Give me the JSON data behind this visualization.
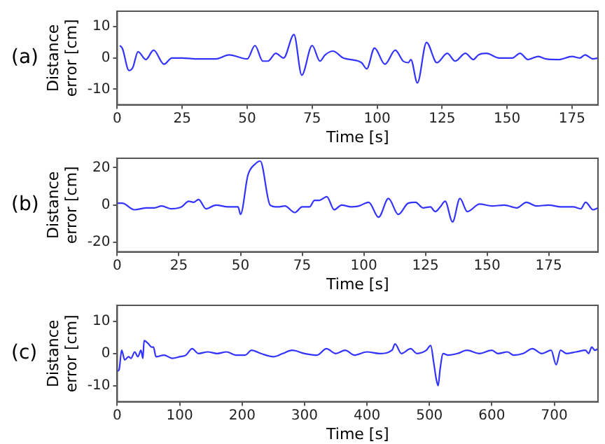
{
  "chart_data": [
    {
      "type": "line",
      "annotations": [
        "(a)"
      ],
      "xlabel": "Time [s]",
      "ylabel": "Distance error [cm]",
      "xlim": [
        0,
        185
      ],
      "xticks": [
        0,
        25,
        50,
        75,
        100,
        125,
        150,
        175
      ],
      "ylim": [
        -15,
        15
      ],
      "yticks": [
        -10,
        0,
        10
      ],
      "grid": false,
      "legend": false,
      "marker": "none",
      "series": [
        {
          "color": "#3333ff",
          "x": [
            1,
            2,
            4.5,
            6,
            8,
            11,
            14,
            18,
            21,
            25,
            30,
            35,
            38,
            43,
            50,
            53,
            56,
            58,
            61,
            64,
            68,
            71,
            75,
            78,
            80,
            83,
            87,
            94,
            96,
            99,
            103,
            107,
            110,
            112,
            113,
            115.5,
            119,
            123,
            127,
            130,
            134,
            137,
            139,
            142,
            147,
            152,
            155,
            158,
            162,
            165,
            170,
            175,
            178,
            180,
            183,
            185
          ],
          "values": [
            4,
            3,
            -4,
            -3,
            2,
            -0.5,
            2.5,
            -2,
            0,
            0,
            -0.3,
            -0.3,
            -0.3,
            1,
            -0.3,
            4,
            -1,
            -1,
            1.5,
            0,
            7.5,
            -5.5,
            4,
            -1,
            1,
            2.2,
            0,
            -1.5,
            -3.5,
            3.2,
            -2,
            2.5,
            -1,
            -1.5,
            -0.5,
            -8,
            5,
            -1.5,
            1.5,
            -1,
            1.5,
            -0.5,
            1,
            1.5,
            0,
            0,
            1.5,
            -0.5,
            0.5,
            -0.3,
            -0.5,
            0.5,
            0,
            1,
            -0.3,
            0
          ]
        }
      ]
    },
    {
      "type": "line",
      "annotations": [
        "(b)"
      ],
      "xlabel": "Time [s]",
      "ylabel": "Distance error [cm]",
      "xlim": [
        0,
        195
      ],
      "xticks": [
        0,
        25,
        50,
        75,
        100,
        125,
        150,
        175
      ],
      "ylim": [
        -25,
        25
      ],
      "yticks": [
        -20,
        0,
        20
      ],
      "grid": false,
      "legend": false,
      "marker": "none",
      "series": [
        {
          "color": "#3333ff",
          "x": [
            0,
            2,
            7,
            12,
            15,
            18,
            22,
            26,
            29,
            31,
            33,
            36,
            40,
            45,
            49,
            50,
            53,
            56,
            58,
            62,
            65,
            68,
            72,
            75,
            78,
            80,
            82,
            85,
            88,
            91,
            95,
            98,
            102,
            106,
            110,
            114,
            118,
            121,
            124,
            127,
            129,
            131,
            133,
            136,
            139,
            142,
            147,
            152,
            157,
            162,
            166,
            170,
            175,
            180,
            185,
            188,
            190,
            193,
            195
          ],
          "values": [
            1,
            1,
            -2.5,
            -1.5,
            -1.5,
            -0.5,
            -2,
            -1,
            2,
            1.5,
            3,
            -2,
            0,
            -1,
            -1,
            -5,
            16,
            22,
            23.5,
            0,
            -1,
            -0.5,
            -4,
            -1,
            -1,
            2.5,
            2.5,
            4.5,
            -2.5,
            0,
            -1,
            -0.5,
            1.5,
            -6.5,
            3.5,
            -5,
            1,
            1.5,
            -1.5,
            -1,
            -3.5,
            -1,
            2,
            -9,
            3.5,
            -3.5,
            0.5,
            -0.5,
            0,
            -1.5,
            1.5,
            -0.5,
            0,
            -1,
            -1,
            -2,
            1.5,
            -2.5,
            -1.5
          ]
        }
      ]
    },
    {
      "type": "line",
      "annotations": [
        "(c)"
      ],
      "xlabel": "Time [s]",
      "ylabel": "Distance error [cm]",
      "xlim": [
        0,
        770
      ],
      "xticks": [
        0,
        100,
        200,
        300,
        400,
        500,
        600,
        700
      ],
      "ylim": [
        -15,
        15
      ],
      "yticks": [
        -10,
        0,
        10
      ],
      "grid": false,
      "legend": false,
      "marker": "none",
      "series": [
        {
          "color": "#3333ff",
          "x": [
            0,
            3,
            7,
            12,
            18,
            22,
            28,
            33,
            38,
            41,
            43,
            50,
            55,
            58,
            62,
            75,
            88,
            100,
            110,
            120,
            130,
            145,
            160,
            175,
            190,
            205,
            215,
            230,
            250,
            265,
            280,
            300,
            320,
            335,
            350,
            365,
            380,
            400,
            420,
            440,
            445,
            455,
            470,
            480,
            495,
            502,
            507,
            511,
            514,
            517,
            522,
            530,
            545,
            560,
            580,
            600,
            610,
            625,
            635,
            650,
            665,
            680,
            695,
            703,
            710,
            720,
            735,
            750,
            755,
            760,
            765,
            770
          ],
          "values": [
            -5.5,
            -5,
            1,
            -2,
            -1,
            -1.5,
            0.5,
            -1,
            1,
            -1.5,
            4,
            3,
            2,
            2,
            -1,
            -0.5,
            -1.5,
            -1,
            -0.5,
            1.5,
            0,
            0.5,
            0,
            0.5,
            -0.5,
            -0.5,
            1,
            0,
            -1,
            0,
            1,
            0,
            -0.5,
            1.5,
            0,
            1,
            -0.5,
            0.5,
            0,
            1,
            3,
            0,
            1.5,
            0,
            1,
            2.5,
            -3,
            -8,
            -10,
            -5,
            0,
            -0.5,
            0,
            1,
            0,
            1,
            0,
            0.5,
            -0.5,
            0,
            1.5,
            0,
            1,
            -3.5,
            1,
            0,
            0.5,
            1,
            0,
            2,
            1,
            1.5
          ]
        }
      ]
    }
  ]
}
